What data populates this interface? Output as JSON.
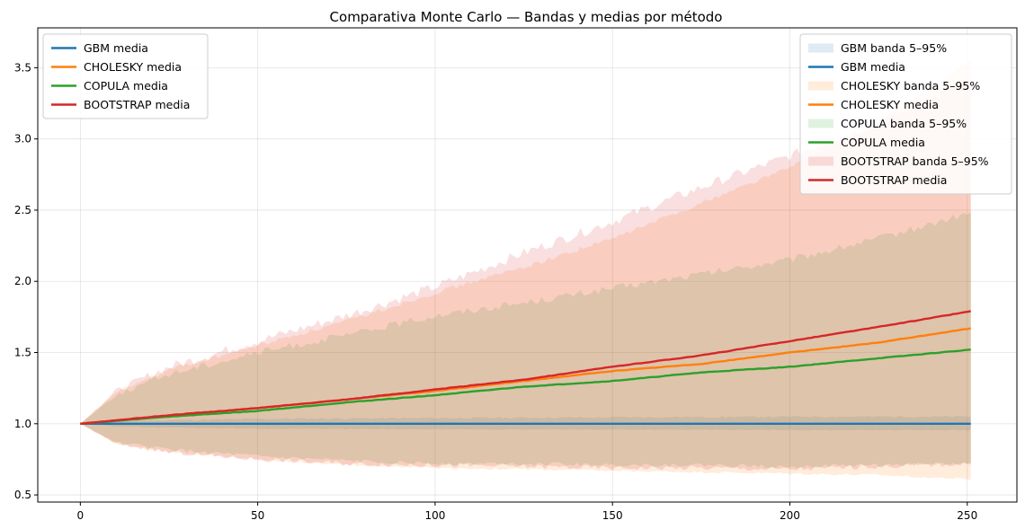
{
  "chart_data": {
    "type": "area",
    "title": "Comparativa Monte Carlo — Bandas y medias por método",
    "xlabel": "",
    "ylabel": "",
    "xlim": [
      -12,
      264
    ],
    "ylim": [
      0.45,
      3.78
    ],
    "xticks": [
      0,
      50,
      100,
      150,
      200,
      250
    ],
    "yticks": [
      0.5,
      1.0,
      1.5,
      2.0,
      2.5,
      3.0,
      3.5
    ],
    "xtick_labels": [
      "0",
      "50",
      "100",
      "150",
      "200",
      "250"
    ],
    "ytick_labels": [
      "0.5",
      "1.0",
      "1.5",
      "2.0",
      "2.5",
      "3.0",
      "3.5"
    ],
    "grid": true,
    "x_max": 251,
    "series": [
      {
        "name": "GBM media",
        "band_name": "GBM banda 5–95%",
        "color": "#1f77b4",
        "mean_points": [
          [
            0,
            1.0
          ],
          [
            50,
            1.0
          ],
          [
            100,
            1.0
          ],
          [
            150,
            1.0
          ],
          [
            200,
            1.0
          ],
          [
            251,
            1.0
          ]
        ],
        "band_upper_points": [
          [
            0,
            1.0
          ],
          [
            10,
            1.02
          ],
          [
            50,
            1.035
          ],
          [
            100,
            1.04
          ],
          [
            150,
            1.045
          ],
          [
            200,
            1.05
          ],
          [
            251,
            1.05
          ]
        ],
        "band_lower_points": [
          [
            0,
            1.0
          ],
          [
            10,
            0.98
          ],
          [
            50,
            0.965
          ],
          [
            100,
            0.96
          ],
          [
            150,
            0.958
          ],
          [
            200,
            0.955
          ],
          [
            251,
            0.955
          ]
        ]
      },
      {
        "name": "CHOLESKY media",
        "band_name": "CHOLESKY banda 5–95%",
        "color": "#ff7f0e",
        "mean_points": [
          [
            0,
            1.0
          ],
          [
            25,
            1.055
          ],
          [
            50,
            1.11
          ],
          [
            75,
            1.17
          ],
          [
            100,
            1.23
          ],
          [
            125,
            1.3
          ],
          [
            150,
            1.37
          ],
          [
            175,
            1.42
          ],
          [
            200,
            1.5
          ],
          [
            225,
            1.57
          ],
          [
            251,
            1.67
          ]
        ],
        "band_upper_points": [
          [
            0,
            1.0
          ],
          [
            10,
            1.22
          ],
          [
            25,
            1.38
          ],
          [
            50,
            1.55
          ],
          [
            75,
            1.72
          ],
          [
            100,
            1.92
          ],
          [
            125,
            2.1
          ],
          [
            150,
            2.3
          ],
          [
            175,
            2.55
          ],
          [
            200,
            2.8
          ],
          [
            225,
            3.1
          ],
          [
            251,
            3.55
          ]
        ],
        "band_lower_points": [
          [
            0,
            1.0
          ],
          [
            10,
            0.86
          ],
          [
            25,
            0.8
          ],
          [
            50,
            0.75
          ],
          [
            75,
            0.71
          ],
          [
            100,
            0.69
          ],
          [
            125,
            0.68
          ],
          [
            150,
            0.67
          ],
          [
            175,
            0.66
          ],
          [
            200,
            0.65
          ],
          [
            225,
            0.64
          ],
          [
            251,
            0.61
          ]
        ]
      },
      {
        "name": "COPULA media",
        "band_name": "COPULA banda 5–95%",
        "color": "#2ca02c",
        "mean_points": [
          [
            0,
            1.0
          ],
          [
            25,
            1.05
          ],
          [
            50,
            1.09
          ],
          [
            75,
            1.15
          ],
          [
            100,
            1.2
          ],
          [
            125,
            1.26
          ],
          [
            150,
            1.3
          ],
          [
            175,
            1.36
          ],
          [
            200,
            1.4
          ],
          [
            225,
            1.46
          ],
          [
            251,
            1.52
          ]
        ],
        "band_upper_points": [
          [
            0,
            1.0
          ],
          [
            10,
            1.2
          ],
          [
            25,
            1.35
          ],
          [
            50,
            1.5
          ],
          [
            75,
            1.62
          ],
          [
            100,
            1.76
          ],
          [
            125,
            1.85
          ],
          [
            150,
            1.95
          ],
          [
            175,
            2.05
          ],
          [
            200,
            2.15
          ],
          [
            225,
            2.3
          ],
          [
            251,
            2.48
          ]
        ],
        "band_lower_points": [
          [
            0,
            1.0
          ],
          [
            10,
            0.87
          ],
          [
            25,
            0.82
          ],
          [
            50,
            0.77
          ],
          [
            75,
            0.74
          ],
          [
            100,
            0.72
          ],
          [
            125,
            0.72
          ],
          [
            150,
            0.71
          ],
          [
            175,
            0.71
          ],
          [
            200,
            0.7
          ],
          [
            225,
            0.71
          ],
          [
            251,
            0.72
          ]
        ]
      },
      {
        "name": "BOOTSTRAP media",
        "band_name": "BOOTSTRAP banda 5–95%",
        "color": "#d62728",
        "mean_points": [
          [
            0,
            1.0
          ],
          [
            25,
            1.06
          ],
          [
            50,
            1.11
          ],
          [
            75,
            1.17
          ],
          [
            100,
            1.24
          ],
          [
            125,
            1.31
          ],
          [
            150,
            1.4
          ],
          [
            175,
            1.48
          ],
          [
            200,
            1.58
          ],
          [
            225,
            1.68
          ],
          [
            251,
            1.79
          ]
        ],
        "band_upper_points": [
          [
            0,
            1.0
          ],
          [
            10,
            1.23
          ],
          [
            25,
            1.4
          ],
          [
            50,
            1.58
          ],
          [
            75,
            1.76
          ],
          [
            100,
            1.96
          ],
          [
            125,
            2.2
          ],
          [
            150,
            2.42
          ],
          [
            175,
            2.66
          ],
          [
            200,
            2.88
          ],
          [
            225,
            3.12
          ],
          [
            251,
            3.4
          ]
        ],
        "band_lower_points": [
          [
            0,
            1.0
          ],
          [
            10,
            0.86
          ],
          [
            25,
            0.8
          ],
          [
            50,
            0.75
          ],
          [
            75,
            0.72
          ],
          [
            100,
            0.71
          ],
          [
            125,
            0.7
          ],
          [
            150,
            0.69
          ],
          [
            175,
            0.69
          ],
          [
            200,
            0.68
          ],
          [
            225,
            0.7
          ],
          [
            251,
            0.72
          ]
        ]
      }
    ],
    "legend_left": {
      "placement": "upper-left",
      "entries": [
        "GBM media",
        "CHOLESKY media",
        "COPULA media",
        "BOOTSTRAP media"
      ]
    },
    "legend_right": {
      "placement": "upper-right",
      "entries": [
        "GBM banda 5–95%",
        "GBM media",
        "CHOLESKY banda 5–95%",
        "CHOLESKY media",
        "COPULA banda 5–95%",
        "COPULA media",
        "BOOTSTRAP banda 5–95%",
        "BOOTSTRAP media"
      ]
    }
  }
}
